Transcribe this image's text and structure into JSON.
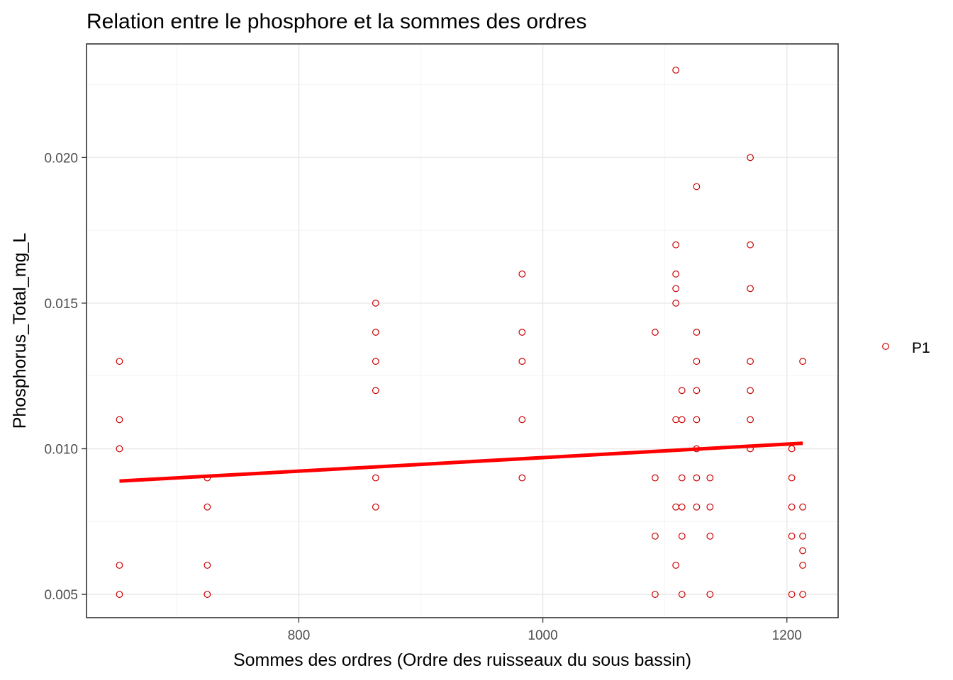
{
  "chart_data": {
    "type": "scatter",
    "title": "Relation entre le phosphore et la sommes des ordres",
    "xlabel": "Sommes des ordres (Ordre des ruisseaux du sous bassin)",
    "ylabel": "Phosphorus_Total_mg_L",
    "xlim": [
      626,
      1242
    ],
    "ylim": [
      0.0042,
      0.0239
    ],
    "x_ticks": [
      800,
      1000,
      1200
    ],
    "x_tick_labels": [
      "800",
      "1000",
      "1200"
    ],
    "y_ticks": [
      0.005,
      0.01,
      0.015,
      0.02
    ],
    "y_tick_labels": [
      "0.005",
      "0.010",
      "0.015",
      "0.020"
    ],
    "grid": true,
    "legend": {
      "placement": "right",
      "entries": [
        "P1"
      ]
    },
    "colors": {
      "points": "#cc0000",
      "trend": "#ff0000"
    },
    "series": [
      {
        "name": "P1",
        "points": [
          [
            653,
            0.013
          ],
          [
            653,
            0.011
          ],
          [
            653,
            0.01
          ],
          [
            653,
            0.006
          ],
          [
            653,
            0.005
          ],
          [
            725,
            0.009
          ],
          [
            725,
            0.008
          ],
          [
            725,
            0.006
          ],
          [
            725,
            0.005
          ],
          [
            863,
            0.015
          ],
          [
            863,
            0.014
          ],
          [
            863,
            0.013
          ],
          [
            863,
            0.012
          ],
          [
            863,
            0.009
          ],
          [
            863,
            0.008
          ],
          [
            983,
            0.016
          ],
          [
            983,
            0.014
          ],
          [
            983,
            0.013
          ],
          [
            983,
            0.011
          ],
          [
            983,
            0.009
          ],
          [
            1092,
            0.014
          ],
          [
            1092,
            0.009
          ],
          [
            1092,
            0.007
          ],
          [
            1092,
            0.005
          ],
          [
            1109,
            0.023
          ],
          [
            1109,
            0.017
          ],
          [
            1109,
            0.016
          ],
          [
            1109,
            0.0155
          ],
          [
            1109,
            0.015
          ],
          [
            1109,
            0.011
          ],
          [
            1109,
            0.008
          ],
          [
            1109,
            0.006
          ],
          [
            1114,
            0.012
          ],
          [
            1114,
            0.011
          ],
          [
            1114,
            0.009
          ],
          [
            1114,
            0.008
          ],
          [
            1114,
            0.007
          ],
          [
            1114,
            0.005
          ],
          [
            1126,
            0.019
          ],
          [
            1126,
            0.014
          ],
          [
            1126,
            0.013
          ],
          [
            1126,
            0.012
          ],
          [
            1126,
            0.011
          ],
          [
            1126,
            0.01
          ],
          [
            1126,
            0.009
          ],
          [
            1126,
            0.008
          ],
          [
            1137,
            0.009
          ],
          [
            1137,
            0.008
          ],
          [
            1137,
            0.007
          ],
          [
            1137,
            0.005
          ],
          [
            1170,
            0.02
          ],
          [
            1170,
            0.017
          ],
          [
            1170,
            0.0155
          ],
          [
            1170,
            0.013
          ],
          [
            1170,
            0.012
          ],
          [
            1170,
            0.011
          ],
          [
            1170,
            0.01
          ],
          [
            1204,
            0.01
          ],
          [
            1204,
            0.009
          ],
          [
            1204,
            0.008
          ],
          [
            1204,
            0.007
          ],
          [
            1204,
            0.005
          ],
          [
            1213,
            0.013
          ],
          [
            1213,
            0.008
          ],
          [
            1213,
            0.007
          ],
          [
            1213,
            0.0065
          ],
          [
            1213,
            0.006
          ],
          [
            1213,
            0.005
          ]
        ]
      }
    ],
    "trend_line": {
      "x": [
        653,
        1213
      ],
      "y": [
        0.00889,
        0.01019
      ]
    }
  }
}
